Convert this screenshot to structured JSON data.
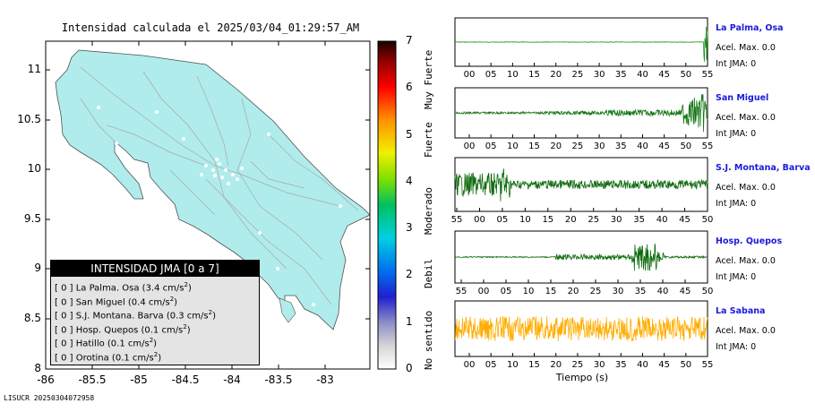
{
  "map": {
    "title": "Intensidad calculada el 2025/03/04_01:29:57_AM",
    "yticks": [
      "11",
      "10.5",
      "10",
      "9.5",
      "9",
      "8.5",
      "8"
    ],
    "xticks": [
      "-86",
      "-85.5",
      "-85",
      "-84.5",
      "-84",
      "-83.5",
      "-83"
    ],
    "footer": "LISUCR 20250304072958"
  },
  "colorbar": {
    "ticks": [
      "7",
      "6",
      "5",
      "4",
      "3",
      "2",
      "1",
      "0"
    ],
    "labels": [
      "Muy Fuerte",
      "Fuerte",
      "Moderado",
      "Debil",
      "No sentido"
    ]
  },
  "legend": {
    "title": "INTENSIDAD JMA [0 a 7]",
    "unit": "cm/s",
    "unit_exp": "2",
    "rows": [
      {
        "prefix": "[ 0 ]",
        "name": "La Palma. Osa",
        "value": "3.4"
      },
      {
        "prefix": "[ 0 ]",
        "name": "San Miguel",
        "value": "0.4"
      },
      {
        "prefix": "[ 0 ]",
        "name": "S.J. Montana. Barva",
        "value": "0.3"
      },
      {
        "prefix": "[ 0 ]",
        "name": "Hosp. Quepos",
        "value": "0.1"
      },
      {
        "prefix": "[ 0 ]",
        "name": "Hatillo",
        "value": "0.1"
      },
      {
        "prefix": "[ 0 ]",
        "name": "Orotina",
        "value": "0.1"
      }
    ]
  },
  "stations": [
    {
      "name": "La Palma, Osa",
      "acel": "Acel. Max. 0.0",
      "int": "Int JMA: 0",
      "color": "#1f8f1f",
      "ticks": [
        "00",
        "05",
        "10",
        "15",
        "20",
        "25",
        "30",
        "35",
        "40",
        "45",
        "50",
        "55"
      ],
      "burst": "end"
    },
    {
      "name": "San Miguel",
      "acel": "Acel. Max. 0.0",
      "int": "Int JMA: 0",
      "color": "#157515",
      "ticks": [
        "00",
        "05",
        "10",
        "15",
        "20",
        "25",
        "30",
        "35",
        "40",
        "45",
        "50",
        "55"
      ],
      "burst": "end-growth"
    },
    {
      "name": "S.J. Montana, Barva",
      "acel": "Acel. Max. 0.0",
      "int": "Int JMA: 0",
      "color": "#0f6b0f",
      "ticks": [
        "55",
        "00",
        "05",
        "10",
        "15",
        "20",
        "25",
        "30",
        "35",
        "40",
        "45",
        "50"
      ],
      "burst": "start"
    },
    {
      "name": "Hosp. Quepos",
      "acel": "Acel. Max. 0.0",
      "int": "Int JMA: 0",
      "color": "#0f6b0f",
      "ticks": [
        "55",
        "00",
        "05",
        "10",
        "15",
        "20",
        "25",
        "30",
        "35",
        "40",
        "45",
        "50"
      ],
      "burst": "middle"
    },
    {
      "name": "La Sabana",
      "acel": "Acel. Max. 0.0",
      "int": "Int JMA: 0",
      "color": "#ffad00",
      "ticks": [
        "00",
        "05",
        "10",
        "15",
        "20",
        "25",
        "30",
        "35",
        "40",
        "45",
        "50",
        "55"
      ],
      "burst": "uniform"
    }
  ],
  "xaxis_label": "Tiempo (s)",
  "colors": {
    "land": "#b0ecec",
    "roads": "#a0a0a0",
    "frame": "#000000"
  }
}
